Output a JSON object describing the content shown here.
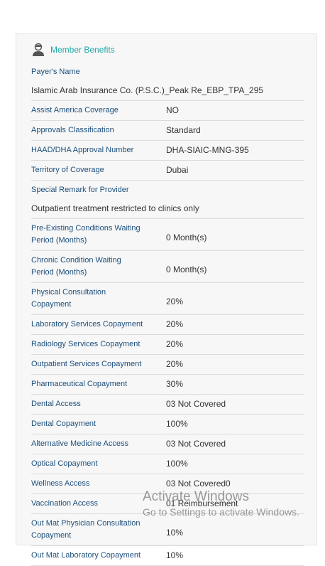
{
  "header": {
    "title": "Member Benefits"
  },
  "rows": [
    {
      "label": "Payer's Name",
      "value": "Islamic Arab Insurance Co. (P.S.C.)_Peak Re_EBP_TPA_295"
    },
    {
      "label": "Assist America Coverage",
      "value": "NO"
    },
    {
      "label": "Approvals Classification",
      "value": "Standard"
    },
    {
      "label": "HAAD/DHA Approval Number",
      "value": "DHA-SIAIC-MNG-395"
    },
    {
      "label": "Territory of Coverage",
      "value": "Dubai"
    },
    {
      "label": "Special Remark for Provider",
      "value": "Outpatient treatment restricted to clinics only"
    },
    {
      "label": "Pre-Existing Conditions Waiting Period (Months)",
      "value": "0 Month(s)"
    },
    {
      "label": "Chronic Condition Waiting Period (Months)",
      "value": "0 Month(s)"
    },
    {
      "label": "Physical Consultation Copayment",
      "value": "20%"
    },
    {
      "label": "Laboratory Services Copayment",
      "value": "20%"
    },
    {
      "label": "Radiology Services Copayment",
      "value": "20%"
    },
    {
      "label": "Outpatient Services Copayment",
      "value": "20%"
    },
    {
      "label": "Pharmaceutical Copayment",
      "value": "30%"
    },
    {
      "label": "Dental Access",
      "value": "03 Not Covered"
    },
    {
      "label": "Dental Copayment",
      "value": "100%"
    },
    {
      "label": "Alternative Medicine Access",
      "value": "03 Not Covered"
    },
    {
      "label": "Optical Copayment",
      "value": "100%"
    },
    {
      "label": "Wellness Access",
      "value": "03 Not Covered0"
    },
    {
      "label": "Vaccination Access",
      "value": "01 Reimbursement"
    },
    {
      "label": "Out Mat Physician Consultation Copayment",
      "value": "10%"
    },
    {
      "label": "Out Mat Laboratory Copayment",
      "value": "10%"
    }
  ],
  "watermark": {
    "title": "Activate Windows",
    "text": "Go to Settings to activate Windows."
  }
}
